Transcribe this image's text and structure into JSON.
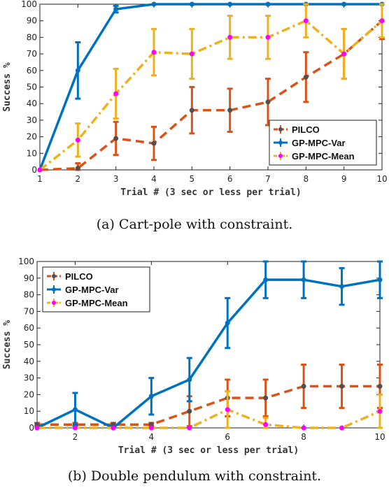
{
  "chart_data": [
    {
      "type": "line",
      "caption": "(a) Cart-pole with constraint.",
      "xlabel": "Trial # (3 sec or less per trial)",
      "ylabel": "Success %",
      "x": [
        1,
        2,
        3,
        4,
        5,
        6,
        7,
        8,
        9,
        10
      ],
      "xlim": [
        1,
        10
      ],
      "ylim": [
        0,
        100
      ],
      "xticks": [
        "1",
        "2",
        "3",
        "4",
        "5",
        "6",
        "7",
        "8",
        "9",
        "10"
      ],
      "yticks": [
        "0",
        "10",
        "20",
        "30",
        "40",
        "50",
        "60",
        "70",
        "80",
        "90",
        "100"
      ],
      "legend_position": "bottom-right",
      "series": [
        {
          "name": "PILCO",
          "color": "#d95319",
          "marker_color": "#505050",
          "style": "dashed",
          "values": [
            0,
            1,
            19,
            16,
            36,
            36,
            41,
            56,
            70,
            90
          ],
          "err": [
            0,
            3,
            10,
            10,
            14,
            13,
            14,
            15,
            15,
            11
          ]
        },
        {
          "name": "GP-MPC-Var",
          "color": "#0072bd",
          "marker_color": "#0072bd",
          "style": "solid",
          "values": [
            0,
            60,
            97,
            100,
            100,
            100,
            100,
            100,
            100,
            100
          ],
          "err": [
            0,
            17,
            2,
            0,
            0,
            0,
            0,
            0,
            0,
            0
          ]
        },
        {
          "name": "GP-MPC-Mean",
          "color": "#edb120",
          "marker_color": "#ff00ff",
          "style": "dashdot",
          "values": [
            0,
            18,
            46,
            71,
            70,
            80,
            80,
            90,
            70,
            90
          ],
          "err": [
            0,
            10,
            15,
            14,
            15,
            13,
            13,
            10,
            15,
            10
          ]
        }
      ]
    },
    {
      "type": "line",
      "caption": "(b) Double pendulum with constraint.",
      "xlabel": "Trial # (3 sec or less per trial)",
      "ylabel": "Success %",
      "x": [
        1,
        2,
        3,
        4,
        5,
        6,
        7,
        8,
        9,
        10
      ],
      "xlim": [
        1,
        10
      ],
      "ylim": [
        0,
        100
      ],
      "xticks": [
        "2",
        "4",
        "6",
        "8",
        "10"
      ],
      "xtick_values": [
        2,
        4,
        6,
        8,
        10
      ],
      "yticks": [
        "0",
        "10",
        "20",
        "30",
        "40",
        "50",
        "60",
        "70",
        "80",
        "90",
        "100"
      ],
      "legend_position": "top-left",
      "series": [
        {
          "name": "PILCO",
          "color": "#d95319",
          "marker_color": "#505050",
          "style": "dashed",
          "values": [
            2,
            2,
            2,
            2,
            10,
            18,
            18,
            25,
            25,
            25
          ],
          "err": [
            1,
            1,
            1,
            1,
            9,
            11,
            11,
            13,
            13,
            13
          ]
        },
        {
          "name": "GP-MPC-Var",
          "color": "#0072bd",
          "marker_color": "#0072bd",
          "style": "solid",
          "values": [
            0,
            11,
            0,
            19,
            29,
            63,
            89,
            89,
            85,
            89
          ],
          "err": [
            0,
            10,
            0,
            11,
            13,
            15,
            11,
            11,
            11,
            11
          ]
        },
        {
          "name": "GP-MPC-Mean",
          "color": "#edb120",
          "marker_color": "#ff00ff",
          "style": "dashdot",
          "values": [
            0,
            0,
            0,
            0,
            0,
            11,
            2,
            0,
            0,
            10
          ],
          "err": [
            0,
            0,
            0,
            0,
            0,
            11,
            4,
            0,
            0,
            10
          ]
        }
      ]
    }
  ]
}
